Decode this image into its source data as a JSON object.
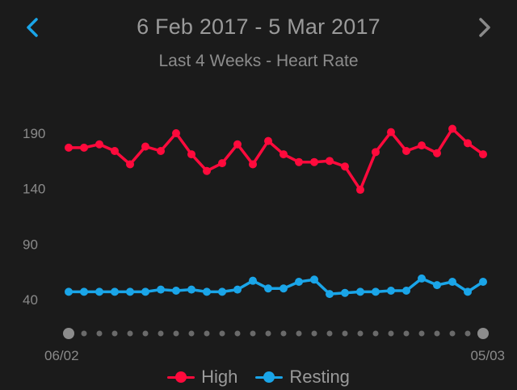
{
  "header": {
    "date_range": "6 Feb 2017 - 5 Mar 2017",
    "subtitle": "Last 4 Weeks - Heart Rate",
    "prev_icon": "chevron-left-icon",
    "next_icon": "chevron-right-icon"
  },
  "colors": {
    "background": "#1b1b1b",
    "high": "#ff0a3c",
    "resting": "#1aa5e8",
    "prev_active": "#1aa5e8",
    "next_inactive": "#8a8a8a",
    "pager_dot": "#6a6a6a"
  },
  "chart_data": {
    "type": "line",
    "x": [
      "06/02",
      "07/02",
      "08/02",
      "09/02",
      "10/02",
      "11/02",
      "12/02",
      "13/02",
      "14/02",
      "15/02",
      "16/02",
      "17/02",
      "18/02",
      "19/02",
      "20/02",
      "21/02",
      "22/02",
      "23/02",
      "24/02",
      "25/02",
      "26/02",
      "27/02",
      "28/02",
      "01/03",
      "02/03",
      "03/03",
      "04/03",
      "05/03"
    ],
    "x_tick_labels": [
      "06/02",
      "05/03"
    ],
    "y_ticks": [
      40,
      90,
      140,
      190
    ],
    "ylim": [
      20,
      205
    ],
    "grid": false,
    "legend_position": "bottom-center",
    "series": [
      {
        "name": "High",
        "color": "#ff0a3c",
        "values": [
          177,
          177,
          180,
          174,
          162,
          178,
          174,
          190,
          171,
          156,
          163,
          180,
          162,
          183,
          171,
          164,
          164,
          165,
          160,
          139,
          173,
          191,
          174,
          179,
          172,
          194,
          181,
          171
        ]
      },
      {
        "name": "Resting",
        "color": "#1aa5e8",
        "values": [
          47,
          47,
          47,
          47,
          47,
          47,
          49,
          48,
          49,
          47,
          47,
          49,
          57,
          50,
          50,
          56,
          58,
          45,
          46,
          47,
          47,
          48,
          48,
          59,
          53,
          56,
          47,
          56
        ]
      }
    ]
  },
  "pager": {
    "count": 28
  }
}
